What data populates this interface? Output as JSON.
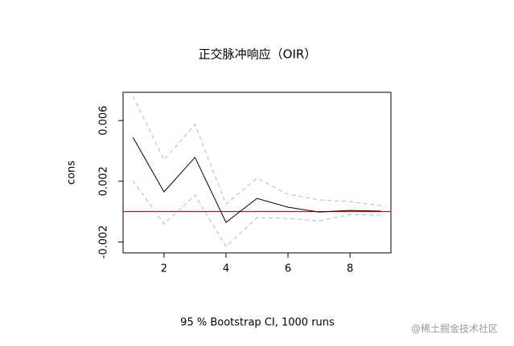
{
  "chart_data": {
    "type": "line",
    "title": "正交脉冲响应（OIR）",
    "y_label": "cons",
    "x_label": "95 % Bootstrap CI, 1000 runs",
    "watermark": "@稀土掘金技术社区",
    "x": [
      1,
      2,
      3,
      4,
      5,
      6,
      7,
      8,
      9
    ],
    "series": [
      {
        "color": "#000000",
        "dashed": false,
        "values": [
          0.00489,
          0.0013,
          0.00357,
          -0.00071,
          0.00087,
          0.00029,
          -3e-05,
          8e-05,
          3e-05
        ]
      },
      {
        "color": "#aab4e6",
        "dashed": true,
        "values": [
          0.0076,
          0.00341,
          0.00574,
          0.0005,
          0.0022,
          0.00114,
          0.00077,
          0.00066,
          0.0004
        ]
      },
      {
        "color": "#aab4e6",
        "dashed": true,
        "values": [
          0.00204,
          -0.00082,
          0.00108,
          -0.0023,
          -0.0004,
          -0.00045,
          -0.00061,
          -0.00019,
          -0.00024
        ]
      }
    ],
    "hline": {
      "value": 0,
      "color": "#e00000"
    },
    "xlim": [
      0.68,
      9.32
    ],
    "xticks": [
      2,
      4,
      6,
      8
    ],
    "ylim": [
      -0.00272,
      0.00786
    ],
    "yticks": [
      -0.002,
      0.002,
      0.006
    ]
  }
}
